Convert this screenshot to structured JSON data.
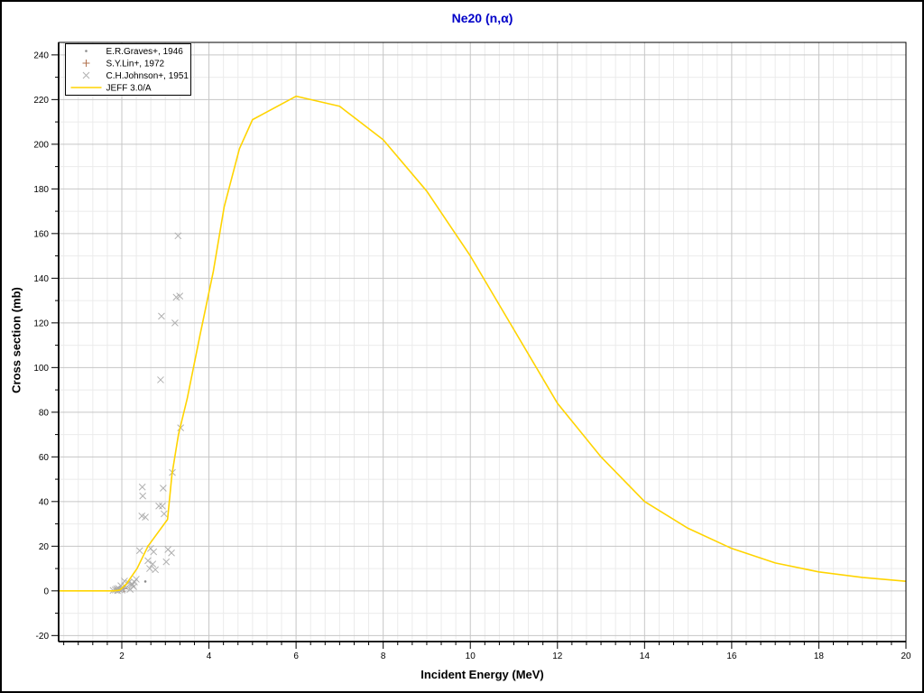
{
  "chart_data": {
    "type": "line+scatter",
    "title": "Ne20 (n,α)",
    "xlabel": "Incident Energy (MeV)",
    "ylabel": "Cross section (mb)",
    "xlim": [
      0.55,
      20
    ],
    "ylim": [
      -22.7,
      245.6
    ],
    "x_major_ticks": [
      2,
      4,
      6,
      8,
      10,
      12,
      14,
      16,
      18,
      20
    ],
    "x_minor_interval": 0.33333,
    "y_major_ticks": [
      -20,
      0,
      20,
      40,
      60,
      80,
      100,
      120,
      140,
      160,
      180,
      200,
      220,
      240
    ],
    "y_minor_interval": 10,
    "grid": true,
    "legend_position": "top-left",
    "colors": {
      "title": "#0000c8",
      "frame": "#000000",
      "grid_major": "#c6c6c6",
      "grid_minor": "#ebebeb",
      "background": "#ffffff"
    },
    "series": [
      {
        "name": "E.R.Graves+, 1946",
        "type": "scatter",
        "marker": "dot",
        "color": "#8a8a8a",
        "points": [
          [
            2.54,
            4.2
          ]
        ]
      },
      {
        "name": "S.Y.Lin+, 1972",
        "type": "scatter",
        "marker": "plus",
        "color": "#b2714d",
        "points": [
          [
            2.05,
            1.0
          ]
        ]
      },
      {
        "name": "C.H.Johnson+, 1951",
        "type": "scatter",
        "marker": "x",
        "color": "#a9a9a9",
        "points": [
          [
            3.29,
            159
          ],
          [
            3.25,
            131.5
          ],
          [
            3.33,
            132
          ],
          [
            2.91,
            123
          ],
          [
            3.22,
            120
          ],
          [
            2.89,
            94.5
          ],
          [
            3.35,
            73
          ],
          [
            3.16,
            53
          ],
          [
            2.47,
            46.5
          ],
          [
            2.95,
            46
          ],
          [
            2.48,
            42.5
          ],
          [
            2.85,
            38
          ],
          [
            2.93,
            38
          ],
          [
            2.97,
            34.5
          ],
          [
            2.46,
            33.5
          ],
          [
            2.54,
            33
          ],
          [
            2.41,
            18
          ],
          [
            2.66,
            19
          ],
          [
            2.73,
            17.5
          ],
          [
            3.06,
            18.5
          ],
          [
            3.14,
            17
          ],
          [
            3.02,
            13
          ],
          [
            2.6,
            13.5
          ],
          [
            2.71,
            12
          ],
          [
            2.64,
            10
          ],
          [
            2.77,
            9.5
          ],
          [
            2.06,
            4.4
          ],
          [
            2.15,
            3.6
          ],
          [
            2.23,
            3.2
          ],
          [
            2.27,
            1.9
          ],
          [
            1.98,
            2.3
          ],
          [
            1.92,
            1.1
          ],
          [
            1.85,
            0.4
          ],
          [
            2.02,
            0.8
          ],
          [
            2.1,
            1.5
          ],
          [
            2.19,
            0.7
          ],
          [
            1.8,
            0.2
          ],
          [
            2.29,
            4.0
          ],
          [
            2.33,
            5.2
          ],
          [
            1.95,
            0.5
          ],
          [
            1.88,
            0.9
          ],
          [
            2.24,
            2.6
          ],
          [
            1.9,
            0.1
          ],
          [
            2.0,
            0.3
          ]
        ]
      },
      {
        "name": "JEFF 3.0/A",
        "type": "line",
        "color": "#ffd400",
        "points": [
          [
            0.55,
            0
          ],
          [
            1.8,
            0
          ],
          [
            1.95,
            0.3
          ],
          [
            2.1,
            3
          ],
          [
            2.35,
            10
          ],
          [
            2.6,
            20
          ],
          [
            3.05,
            32
          ],
          [
            3.15,
            52
          ],
          [
            3.3,
            70
          ],
          [
            3.5,
            86
          ],
          [
            3.8,
            115
          ],
          [
            4.1,
            143
          ],
          [
            4.35,
            172
          ],
          [
            4.7,
            198
          ],
          [
            5.0,
            211
          ],
          [
            6.0,
            221.5
          ],
          [
            7.0,
            217
          ],
          [
            8.0,
            202
          ],
          [
            9.0,
            179
          ],
          [
            10.0,
            150
          ],
          [
            11.0,
            117
          ],
          [
            12.0,
            84
          ],
          [
            13.0,
            60
          ],
          [
            14.0,
            40
          ],
          [
            15.0,
            28
          ],
          [
            16.0,
            19
          ],
          [
            17.0,
            12.5
          ],
          [
            18.0,
            8.5
          ],
          [
            19.0,
            6
          ],
          [
            20.0,
            4.3
          ]
        ]
      }
    ]
  }
}
